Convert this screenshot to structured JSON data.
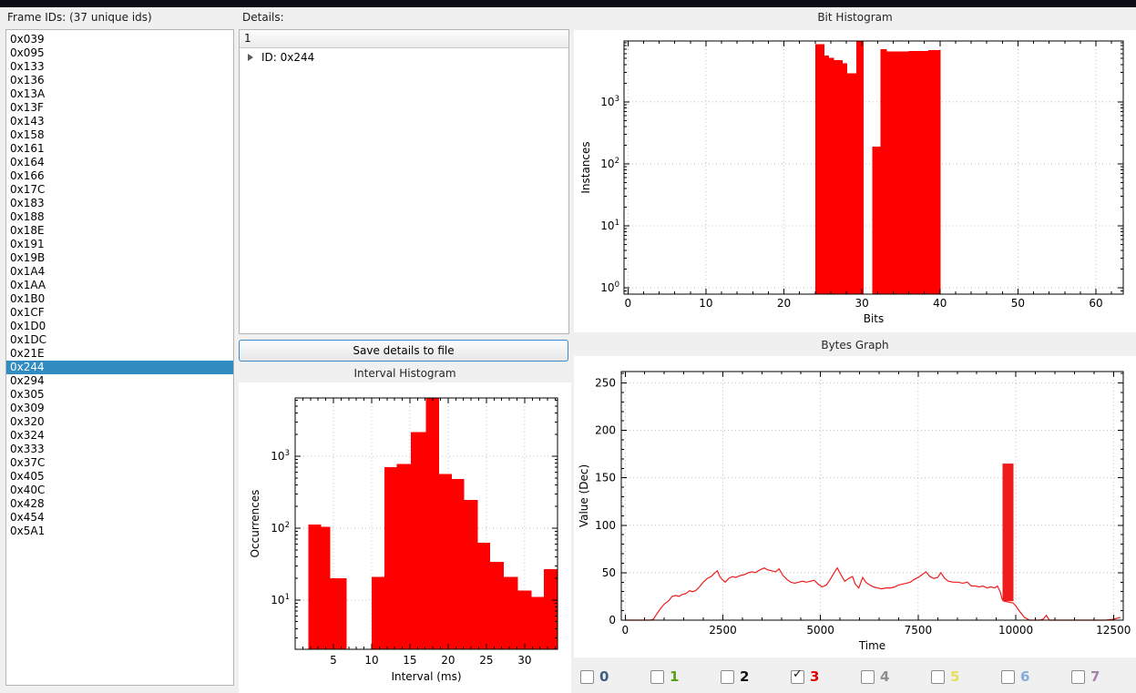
{
  "window": {
    "top_strip_color": "#0d0d15",
    "background": "#f0f0f0"
  },
  "frame_ids": {
    "label": "Frame IDs: (37 unique ids)",
    "selected": "0x244",
    "selection_color": "#318cc2",
    "items": [
      "0x039",
      "0x095",
      "0x133",
      "0x136",
      "0x13A",
      "0x13F",
      "0x143",
      "0x158",
      "0x161",
      "0x164",
      "0x166",
      "0x17C",
      "0x183",
      "0x188",
      "0x18E",
      "0x191",
      "0x19B",
      "0x1A4",
      "0x1AA",
      "0x1B0",
      "0x1CF",
      "0x1D0",
      "0x1DC",
      "0x21E",
      "0x244",
      "0x294",
      "0x305",
      "0x309",
      "0x320",
      "0x324",
      "0x333",
      "0x37C",
      "0x405",
      "0x40C",
      "0x428",
      "0x454",
      "0x5A1"
    ]
  },
  "details": {
    "label": "Details:",
    "tree_header": "1",
    "tree_item": "ID: 0x244",
    "save_button": "Save details to file"
  },
  "byte_checkboxes": {
    "check_glyph": "✓",
    "items": [
      {
        "label": "0",
        "color": "#3d5f85",
        "checked": false
      },
      {
        "label": "1",
        "color": "#54a318",
        "checked": false
      },
      {
        "label": "2",
        "color": "#141414",
        "checked": false
      },
      {
        "label": "3",
        "color": "#e00000",
        "checked": true
      },
      {
        "label": "4",
        "color": "#8f8f8f",
        "checked": false
      },
      {
        "label": "5",
        "color": "#e6e05c",
        "checked": false
      },
      {
        "label": "6",
        "color": "#85abd9",
        "checked": false
      },
      {
        "label": "7",
        "color": "#a981a6",
        "checked": false
      }
    ]
  },
  "chart_data": [
    {
      "id": "bit-histogram",
      "type": "bar",
      "title": "Bit Histogram",
      "xlabel": "Bits",
      "ylabel": "Instances",
      "grid": true,
      "x_range": [
        -0.5,
        63.5
      ],
      "x_ticks": [
        0,
        10,
        20,
        30,
        40,
        50,
        60
      ],
      "x_minor_step": 2,
      "y_scale": "log",
      "y_decades": [
        0,
        1,
        2,
        3
      ],
      "y_exp_range": [
        -0.1,
        3.98
      ],
      "bar_color": "#ff0000",
      "bars": [
        [
          24.0,
          25.2,
          8500
        ],
        [
          25.2,
          25.8,
          5600
        ],
        [
          25.8,
          26.4,
          5100
        ],
        [
          26.4,
          27.5,
          4700
        ],
        [
          27.5,
          28.1,
          4200
        ],
        [
          28.1,
          29.3,
          2900
        ],
        [
          29.3,
          30.2,
          9500
        ],
        [
          31.3,
          32.4,
          190
        ],
        [
          32.4,
          33.2,
          7000
        ],
        [
          33.2,
          36.0,
          6500
        ],
        [
          36.0,
          38.5,
          6600
        ],
        [
          38.5,
          40.1,
          6800
        ]
      ]
    },
    {
      "id": "bytes-graph",
      "type": "line",
      "title": "Bytes Graph",
      "xlabel": "Time",
      "ylabel": "Value (Dec)",
      "grid": true,
      "x_range": [
        -100,
        12750
      ],
      "x_ticks": [
        0,
        2500,
        5000,
        7500,
        10000,
        12500
      ],
      "x_minor_step": 500,
      "y_scale": "linear",
      "y_range": [
        0,
        262
      ],
      "y_ticks": [
        0,
        50,
        100,
        150,
        200,
        250
      ],
      "y_minor_step": 10,
      "line_color": "#ee1c1c",
      "points": [
        [
          0,
          0
        ],
        [
          650,
          0
        ],
        [
          720,
          1
        ],
        [
          800,
          6
        ],
        [
          900,
          12
        ],
        [
          1000,
          17
        ],
        [
          1100,
          20
        ],
        [
          1200,
          25
        ],
        [
          1300,
          26
        ],
        [
          1380,
          25
        ],
        [
          1450,
          27
        ],
        [
          1550,
          28
        ],
        [
          1650,
          31
        ],
        [
          1720,
          30
        ],
        [
          1800,
          31
        ],
        [
          1900,
          35
        ],
        [
          2000,
          40
        ],
        [
          2100,
          44
        ],
        [
          2200,
          46
        ],
        [
          2300,
          50
        ],
        [
          2360,
          52
        ],
        [
          2420,
          46
        ],
        [
          2500,
          42
        ],
        [
          2560,
          40
        ],
        [
          2650,
          44
        ],
        [
          2750,
          46
        ],
        [
          2830,
          45
        ],
        [
          2950,
          47
        ],
        [
          3050,
          48
        ],
        [
          3150,
          50
        ],
        [
          3250,
          51
        ],
        [
          3330,
          50
        ],
        [
          3450,
          53
        ],
        [
          3560,
          55
        ],
        [
          3650,
          53
        ],
        [
          3750,
          52
        ],
        [
          3850,
          51
        ],
        [
          3940,
          54
        ],
        [
          4040,
          47
        ],
        [
          4140,
          43
        ],
        [
          4240,
          40
        ],
        [
          4340,
          39
        ],
        [
          4440,
          40
        ],
        [
          4540,
          41
        ],
        [
          4640,
          40
        ],
        [
          4740,
          41
        ],
        [
          4840,
          42
        ],
        [
          4940,
          38
        ],
        [
          5040,
          35
        ],
        [
          5150,
          37
        ],
        [
          5250,
          43
        ],
        [
          5350,
          50
        ],
        [
          5430,
          55
        ],
        [
          5520,
          48
        ],
        [
          5620,
          41
        ],
        [
          5720,
          44
        ],
        [
          5820,
          46
        ],
        [
          5890,
          38
        ],
        [
          5980,
          34
        ],
        [
          6080,
          45
        ],
        [
          6160,
          40
        ],
        [
          6260,
          37
        ],
        [
          6360,
          35
        ],
        [
          6460,
          34
        ],
        [
          6560,
          33
        ],
        [
          6680,
          34
        ],
        [
          6800,
          34
        ],
        [
          6900,
          35
        ],
        [
          7000,
          37
        ],
        [
          7100,
          38
        ],
        [
          7200,
          39
        ],
        [
          7300,
          40
        ],
        [
          7400,
          43
        ],
        [
          7500,
          45
        ],
        [
          7600,
          48
        ],
        [
          7700,
          51
        ],
        [
          7800,
          46
        ],
        [
          7900,
          44
        ],
        [
          8000,
          45
        ],
        [
          8080,
          50
        ],
        [
          8180,
          44
        ],
        [
          8280,
          41
        ],
        [
          8400,
          40
        ],
        [
          8520,
          40
        ],
        [
          8640,
          39
        ],
        [
          8760,
          40
        ],
        [
          8860,
          36
        ],
        [
          8960,
          36
        ],
        [
          9060,
          35
        ],
        [
          9160,
          36
        ],
        [
          9260,
          34
        ],
        [
          9360,
          35
        ],
        [
          9460,
          34
        ],
        [
          9530,
          36
        ],
        [
          9600,
          30
        ],
        [
          9650,
          22
        ],
        [
          9700,
          20
        ],
        [
          9930,
          18
        ],
        [
          10000,
          15
        ],
        [
          10100,
          9
        ],
        [
          10220,
          3
        ],
        [
          10350,
          0
        ],
        [
          10600,
          0
        ],
        [
          10700,
          1
        ],
        [
          10780,
          5
        ],
        [
          10860,
          0
        ],
        [
          11100,
          0
        ],
        [
          11800,
          0
        ],
        [
          12300,
          0
        ],
        [
          12500,
          1
        ],
        [
          12680,
          3
        ]
      ],
      "spike": {
        "x0": 9660,
        "x1": 9940,
        "y0": 20,
        "y1": 165
      }
    },
    {
      "id": "interval-histogram",
      "type": "bar",
      "title": "Interval Histogram",
      "xlabel": "Interval (ms)",
      "ylabel": "Occurrences",
      "grid": true,
      "x_range": [
        0,
        34.3
      ],
      "x_ticks": [
        5,
        10,
        15,
        20,
        25,
        30
      ],
      "x_minor_step": 1,
      "y_scale": "log",
      "y_decades": [
        1,
        2,
        3
      ],
      "y_exp_range": [
        0.316,
        3.81
      ],
      "bar_color": "#ff0000",
      "bars": [
        [
          1.7,
          3.4,
          112
        ],
        [
          3.4,
          4.6,
          104
        ],
        [
          4.6,
          6.7,
          20
        ],
        [
          10.0,
          11.7,
          21
        ],
        [
          11.7,
          13.3,
          700
        ],
        [
          13.3,
          15.1,
          780
        ],
        [
          15.1,
          17.1,
          2150
        ],
        [
          17.1,
          18.8,
          8000
        ],
        [
          18.8,
          20.5,
          570
        ],
        [
          20.5,
          22.1,
          480
        ],
        [
          22.1,
          23.9,
          245
        ],
        [
          23.9,
          25.5,
          63
        ],
        [
          25.5,
          27.3,
          34
        ],
        [
          27.3,
          29.1,
          21
        ],
        [
          29.1,
          30.9,
          13.5
        ],
        [
          30.9,
          32.5,
          11
        ],
        [
          32.5,
          34.3,
          27
        ]
      ]
    }
  ]
}
